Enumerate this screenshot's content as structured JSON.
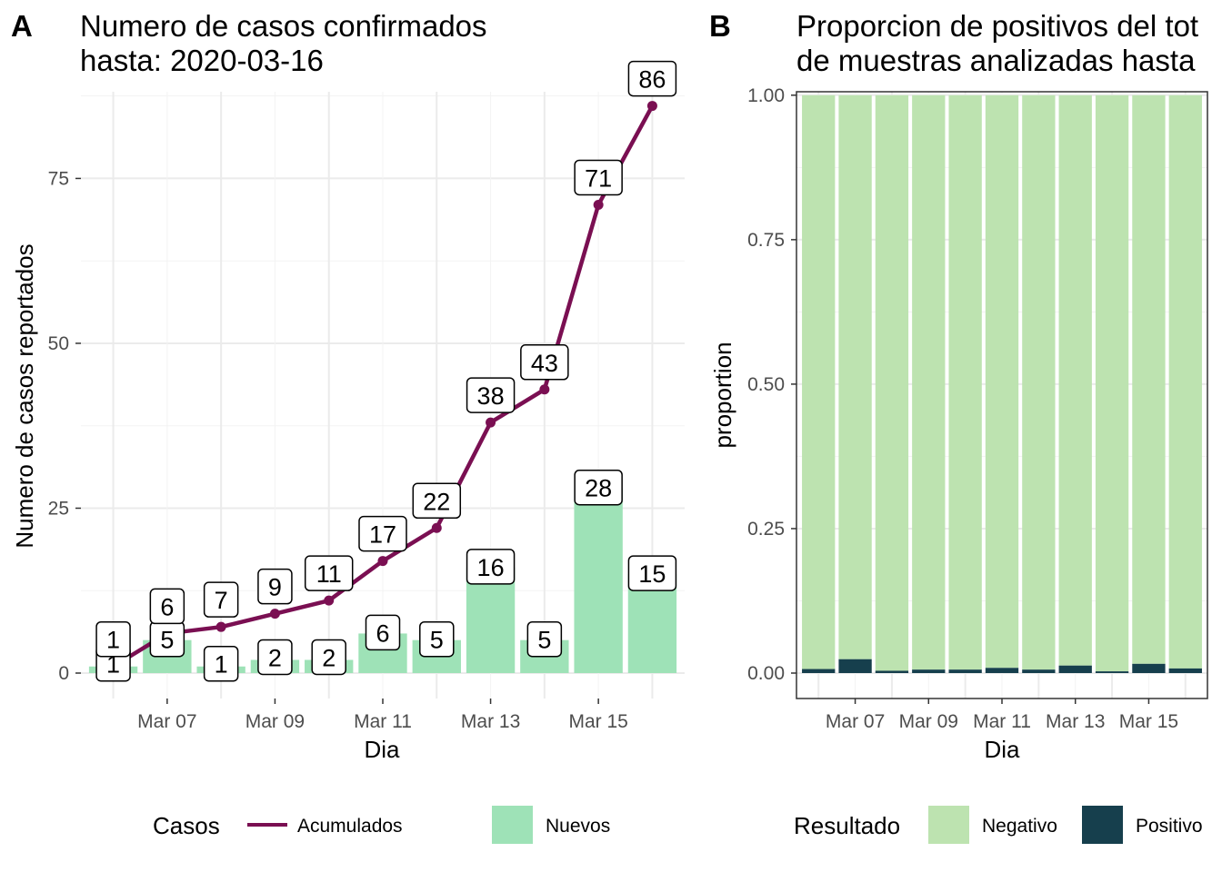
{
  "chart_data": [
    {
      "type": "bar+line",
      "tag": "A",
      "title_lines": [
        "Numero de casos confirmados",
        "hasta: 2020-03-16"
      ],
      "xlabel": "Dia",
      "ylabel": "Numero de casos reportados",
      "x": [
        "2020-03-06",
        "2020-03-07",
        "2020-03-08",
        "2020-03-09",
        "2020-03-10",
        "2020-03-11",
        "2020-03-12",
        "2020-03-13",
        "2020-03-14",
        "2020-03-15",
        "2020-03-16"
      ],
      "x_tick_labels": [
        "Mar 07",
        "Mar 09",
        "Mar 11",
        "Mar 13",
        "Mar 15"
      ],
      "y_ticks": [
        0,
        25,
        50,
        75
      ],
      "y_tick_labels": [
        "0",
        "25",
        "50",
        "75"
      ],
      "ylim": [
        0,
        92
      ],
      "grid": true,
      "series": [
        {
          "name": "Nuevos",
          "kind": "bar",
          "color": "#9ee2b7",
          "values": [
            1,
            5,
            1,
            2,
            2,
            6,
            5,
            16,
            5,
            28,
            15
          ]
        },
        {
          "name": "Acumulados",
          "kind": "line",
          "color": "#7a0f52",
          "values": [
            1,
            6,
            7,
            9,
            11,
            17,
            22,
            38,
            43,
            71,
            86
          ]
        }
      ],
      "legend": {
        "title": "Casos",
        "position": "bottom",
        "items": [
          "Acumulados",
          "Nuevos"
        ]
      }
    },
    {
      "type": "bar",
      "stacked": true,
      "tag": "B",
      "title_lines": [
        "Proporcion de positivos del tot",
        "de muestras analizadas hasta"
      ],
      "xlabel": "Dia",
      "ylabel": "proportion",
      "x": [
        "2020-03-06",
        "2020-03-07",
        "2020-03-08",
        "2020-03-09",
        "2020-03-10",
        "2020-03-11",
        "2020-03-12",
        "2020-03-13",
        "2020-03-14",
        "2020-03-15",
        "2020-03-16"
      ],
      "x_tick_labels": [
        "Mar 07",
        "Mar 09",
        "Mar 11",
        "Mar 13",
        "Mar 15"
      ],
      "y_ticks": [
        0,
        0.25,
        0.5,
        0.75,
        1.0
      ],
      "y_tick_labels": [
        "0.00",
        "0.25",
        "0.50",
        "0.75",
        "1.00"
      ],
      "ylim": [
        0,
        1.05
      ],
      "grid": true,
      "series": [
        {
          "name": "Positivo",
          "color": "#163f4d",
          "values": [
            0.007,
            0.024,
            0.004,
            0.006,
            0.006,
            0.009,
            0.006,
            0.013,
            0.003,
            0.016,
            0.008
          ]
        },
        {
          "name": "Negativo",
          "color": "#bde3b0",
          "values": [
            0.993,
            0.976,
            0.996,
            0.994,
            0.994,
            0.991,
            0.994,
            0.987,
            0.997,
            0.984,
            0.992
          ]
        }
      ],
      "legend": {
        "title": "Resultado",
        "position": "bottom",
        "items": [
          "Negativo",
          "Positivo"
        ]
      }
    }
  ]
}
